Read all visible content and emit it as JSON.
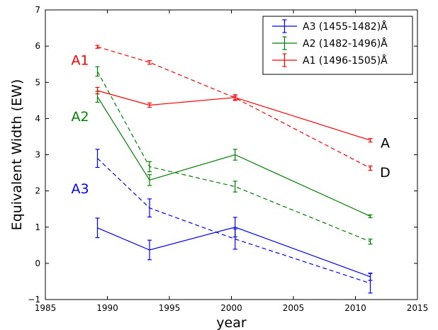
{
  "chart_data": {
    "type": "line",
    "xlabel": "year",
    "ylabel": "Equivalent Width (EW)",
    "xlim": [
      1985,
      2015
    ],
    "ylim": [
      -1,
      7
    ],
    "xticks": [
      "1985",
      "1990",
      "1995",
      "2000",
      "2005",
      "2010",
      "2015"
    ],
    "yticks": [
      "−1",
      "0",
      "1",
      "2",
      "3",
      "4",
      "5",
      "6",
      "7"
    ],
    "legend_position": "top-right",
    "grid": false,
    "series": [
      {
        "name": "A3 (1455-1482)Å",
        "color": "#0000ff",
        "points": [
          {
            "x": 1989.2,
            "y": 0.98,
            "err": 0.27
          },
          {
            "x": 1993.4,
            "y": 0.37,
            "err": 0.27
          },
          {
            "x": 2000.3,
            "y": 1.0,
            "err": 0.27
          },
          {
            "x": 2011.2,
            "y": -0.37,
            "err": 0.1
          }
        ]
      },
      {
        "name": "A2 (1482-1496)Å",
        "color": "#008000",
        "points": [
          {
            "x": 1989.2,
            "y": 4.6,
            "err": 0.15
          },
          {
            "x": 1993.4,
            "y": 2.3,
            "err": 0.15
          },
          {
            "x": 2000.3,
            "y": 3.0,
            "err": 0.15
          },
          {
            "x": 2011.2,
            "y": 1.3,
            "err": 0.04
          }
        ]
      },
      {
        "name": "A1 (1496-1505)Å",
        "color": "#ff0000",
        "points": [
          {
            "x": 1989.2,
            "y": 4.77,
            "err": 0.09
          },
          {
            "x": 1993.4,
            "y": 4.37,
            "err": 0.06
          },
          {
            "x": 2000.3,
            "y": 4.58,
            "err": 0.08
          },
          {
            "x": 2011.2,
            "y": 3.4,
            "err": 0.05
          }
        ]
      },
      {
        "color": "#0000ff",
        "linestyle": "dashed",
        "points": [
          {
            "x": 1989.2,
            "y": 2.9,
            "err": 0.25
          },
          {
            "x": 1993.4,
            "y": 1.53,
            "err": 0.25
          },
          {
            "x": 2000.3,
            "y": 0.67,
            "err": 0.28
          },
          {
            "x": 2011.2,
            "y": -0.55,
            "err": 0.27
          }
        ]
      },
      {
        "color": "#008000",
        "linestyle": "dashed",
        "points": [
          {
            "x": 1989.2,
            "y": 5.3,
            "err": 0.13
          },
          {
            "x": 1993.4,
            "y": 2.67,
            "err": 0.14
          },
          {
            "x": 2000.3,
            "y": 2.12,
            "err": 0.15
          },
          {
            "x": 2011.2,
            "y": 0.6,
            "err": 0.07
          }
        ]
      },
      {
        "color": "#ff0000",
        "linestyle": "dashed",
        "points": [
          {
            "x": 1989.2,
            "y": 5.98,
            "err": 0.04
          },
          {
            "x": 1993.4,
            "y": 5.55,
            "err": 0.05
          },
          {
            "x": 2000.3,
            "y": 4.57,
            "err": 0.05
          },
          {
            "x": 2011.2,
            "y": 2.63,
            "err": 0.06
          }
        ]
      }
    ],
    "annotations": [
      {
        "text": "A1",
        "x": 1987.8,
        "y": 5.62,
        "color": "#ff0000"
      },
      {
        "text": "A2",
        "x": 1987.8,
        "y": 4.07,
        "color": "#008000"
      },
      {
        "text": "A3",
        "x": 1987.8,
        "y": 2.07,
        "color": "#0000ff"
      },
      {
        "text": "A",
        "x": 2012.4,
        "y": 3.33,
        "color": "#000000"
      },
      {
        "text": "D",
        "x": 2012.4,
        "y": 2.52,
        "color": "#000000"
      }
    ]
  }
}
